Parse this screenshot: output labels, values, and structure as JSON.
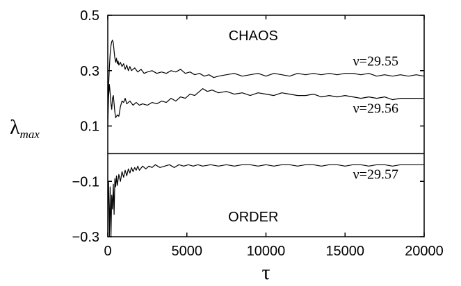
{
  "chart_data": {
    "type": "line",
    "title": "",
    "xlabel": "τ",
    "ylabel": "λ",
    "ylabel_sub": "max",
    "xlim": [
      0,
      20000
    ],
    "ylim": [
      -0.3,
      0.5
    ],
    "x_ticks": [
      0,
      5000,
      10000,
      15000,
      20000
    ],
    "x_tick_labels": [
      "0",
      "5000",
      "10000",
      "15000",
      "20000"
    ],
    "y_ticks": [
      -0.3,
      -0.1,
      0.1,
      0.3,
      0.5
    ],
    "y_tick_labels": [
      "−0.3",
      "−0.1",
      "0.1",
      "0.3",
      "0.5"
    ],
    "zero_line": true,
    "grid": false,
    "legend": "none",
    "annotations": {
      "chaos": "CHAOS",
      "order": "ORDER"
    },
    "series": [
      {
        "name": "ν=29.55",
        "x": [
          0,
          50,
          100,
          150,
          200,
          250,
          300,
          350,
          400,
          450,
          500,
          550,
          600,
          650,
          700,
          800,
          900,
          1000,
          1100,
          1200,
          1300,
          1400,
          1500,
          1700,
          1900,
          2100,
          2300,
          2500,
          2800,
          3100,
          3400,
          3700,
          4000,
          4300,
          4600,
          4900,
          5200,
          5500,
          5800,
          6100,
          6400,
          6700,
          7000,
          7500,
          8000,
          8500,
          9000,
          9500,
          10000,
          10500,
          11000,
          11500,
          12000,
          12500,
          13000,
          13500,
          14000,
          14500,
          15000,
          15500,
          16000,
          16500,
          17000,
          17500,
          18000,
          18500,
          19000,
          19500,
          20000
        ],
        "y": [
          0.13,
          0.24,
          0.31,
          0.36,
          0.39,
          0.405,
          0.41,
          0.4,
          0.37,
          0.345,
          0.33,
          0.345,
          0.325,
          0.335,
          0.32,
          0.33,
          0.315,
          0.325,
          0.305,
          0.32,
          0.3,
          0.315,
          0.3,
          0.31,
          0.295,
          0.305,
          0.29,
          0.295,
          0.3,
          0.29,
          0.295,
          0.29,
          0.3,
          0.295,
          0.305,
          0.29,
          0.295,
          0.285,
          0.29,
          0.28,
          0.285,
          0.275,
          0.28,
          0.285,
          0.29,
          0.28,
          0.285,
          0.29,
          0.28,
          0.29,
          0.285,
          0.28,
          0.29,
          0.285,
          0.29,
          0.285,
          0.29,
          0.285,
          0.29,
          0.29,
          0.285,
          0.29,
          0.28,
          0.285,
          0.28,
          0.285,
          0.28,
          0.285,
          0.28
        ]
      },
      {
        "name": "ν=29.56",
        "x": [
          0,
          50,
          100,
          150,
          200,
          250,
          300,
          350,
          400,
          450,
          500,
          600,
          700,
          800,
          900,
          1000,
          1100,
          1200,
          1400,
          1600,
          1800,
          2000,
          2200,
          2500,
          2800,
          3100,
          3400,
          3700,
          4000,
          4300,
          4600,
          4900,
          5200,
          5500,
          5800,
          6000,
          6300,
          6600,
          7000,
          7500,
          8000,
          8500,
          9000,
          9500,
          10000,
          10500,
          11000,
          11500,
          12000,
          12500,
          13000,
          13500,
          14000,
          14500,
          15000,
          15500,
          16000,
          16500,
          17000,
          17500,
          18000,
          18500,
          19000,
          19500,
          20000
        ],
        "y": [
          0.1,
          0.2,
          0.25,
          0.22,
          0.18,
          0.16,
          0.2,
          0.21,
          0.18,
          0.15,
          0.13,
          0.14,
          0.135,
          0.17,
          0.19,
          0.185,
          0.2,
          0.18,
          0.19,
          0.175,
          0.185,
          0.175,
          0.18,
          0.175,
          0.185,
          0.18,
          0.19,
          0.185,
          0.2,
          0.19,
          0.205,
          0.2,
          0.215,
          0.21,
          0.225,
          0.235,
          0.225,
          0.23,
          0.22,
          0.225,
          0.215,
          0.22,
          0.21,
          0.22,
          0.215,
          0.21,
          0.22,
          0.215,
          0.21,
          0.21,
          0.215,
          0.205,
          0.21,
          0.205,
          0.21,
          0.205,
          0.2,
          0.205,
          0.2,
          0.205,
          0.195,
          0.2,
          0.2,
          0.2,
          0.2
        ]
      },
      {
        "name": "ν=29.57",
        "x": [
          0,
          50,
          100,
          150,
          200,
          250,
          300,
          350,
          400,
          450,
          500,
          550,
          600,
          700,
          800,
          900,
          1000,
          1100,
          1200,
          1300,
          1400,
          1500,
          1600,
          1700,
          1800,
          1900,
          2000,
          2200,
          2400,
          2600,
          2800,
          3000,
          3300,
          3600,
          3900,
          4200,
          4500,
          4800,
          5100,
          5400,
          5700,
          6000,
          6500,
          7000,
          7500,
          8000,
          8500,
          9000,
          9500,
          10000,
          10500,
          11000,
          11500,
          12000,
          12500,
          13000,
          13500,
          14000,
          14500,
          15000,
          15500,
          16000,
          16500,
          17000,
          17500,
          18000,
          18500,
          19000,
          19500,
          20000
        ],
        "y": [
          -0.18,
          -0.1,
          -0.3,
          -0.12,
          -0.3,
          -0.15,
          -0.2,
          -0.11,
          -0.22,
          -0.09,
          -0.12,
          -0.08,
          -0.115,
          -0.075,
          -0.1,
          -0.065,
          -0.085,
          -0.06,
          -0.08,
          -0.055,
          -0.07,
          -0.05,
          -0.065,
          -0.05,
          -0.06,
          -0.045,
          -0.06,
          -0.045,
          -0.055,
          -0.045,
          -0.05,
          -0.04,
          -0.05,
          -0.045,
          -0.04,
          -0.05,
          -0.04,
          -0.045,
          -0.04,
          -0.045,
          -0.04,
          -0.045,
          -0.04,
          -0.045,
          -0.04,
          -0.045,
          -0.04,
          -0.04,
          -0.045,
          -0.04,
          -0.045,
          -0.04,
          -0.04,
          -0.045,
          -0.04,
          -0.04,
          -0.045,
          -0.04,
          -0.04,
          -0.045,
          -0.04,
          -0.04,
          -0.045,
          -0.04,
          -0.04,
          -0.045,
          -0.04,
          -0.04,
          -0.04,
          -0.04
        ]
      }
    ]
  }
}
